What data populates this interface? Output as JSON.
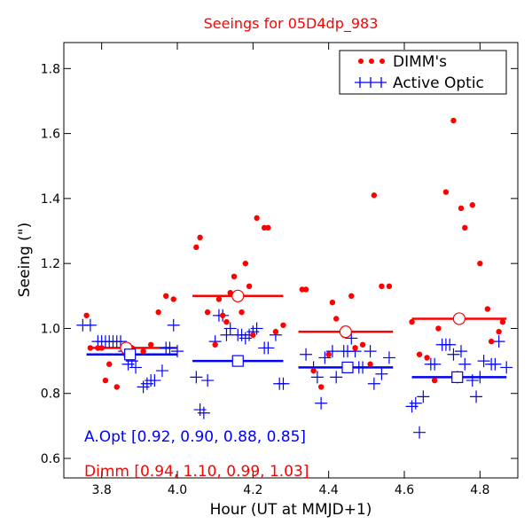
{
  "chart_data": {
    "type": "scatter",
    "title": "Seeings for 05D4dp_983",
    "xlabel": "Hour (UT at MMJD+1)",
    "ylabel": "Seeing (\")",
    "xlim": [
      3.7,
      4.9
    ],
    "ylim": [
      0.54,
      1.88
    ],
    "xticks": [
      3.8,
      4.0,
      4.2,
      4.4,
      4.6,
      4.8
    ],
    "xtick_labels": [
      "3.8",
      "4.0",
      "4.2",
      "4.4",
      "4.6",
      "4.8"
    ],
    "yticks": [
      0.6,
      0.8,
      1.0,
      1.2,
      1.4,
      1.6,
      1.8
    ],
    "ytick_labels": [
      "0.6",
      "0.8",
      "1.0",
      "1.2",
      "1.4",
      "1.6",
      "1.8"
    ],
    "legend": {
      "position": "top-right",
      "entries": [
        {
          "label": "DIMM's",
          "color": "#ff0000",
          "marker": "dot"
        },
        {
          "label": "Active Optic",
          "color": "#0000ff",
          "marker": "plus"
        }
      ]
    },
    "colors": {
      "dimm": "#ff0000",
      "aopt": "#0000ff"
    },
    "series": [
      {
        "name": "DIMM's",
        "marker": "dot",
        "points": [
          [
            3.76,
            1.04
          ],
          [
            3.77,
            0.94
          ],
          [
            3.79,
            0.94
          ],
          [
            3.8,
            0.94
          ],
          [
            3.81,
            0.84
          ],
          [
            3.82,
            0.89
          ],
          [
            3.84,
            0.82
          ],
          [
            3.86,
            0.93
          ],
          [
            3.88,
            0.94
          ],
          [
            3.91,
            0.93
          ],
          [
            3.93,
            0.95
          ],
          [
            3.95,
            1.05
          ],
          [
            3.97,
            1.1
          ],
          [
            3.99,
            1.09
          ],
          [
            4.05,
            1.25
          ],
          [
            4.06,
            1.28
          ],
          [
            4.08,
            1.05
          ],
          [
            4.1,
            0.95
          ],
          [
            4.11,
            1.09
          ],
          [
            4.12,
            1.04
          ],
          [
            4.13,
            1.02
          ],
          [
            4.14,
            1.11
          ],
          [
            4.15,
            1.16
          ],
          [
            4.17,
            1.05
          ],
          [
            4.18,
            1.2
          ],
          [
            4.19,
            1.13
          ],
          [
            4.2,
            0.98
          ],
          [
            4.21,
            1.34
          ],
          [
            4.23,
            1.31
          ],
          [
            4.24,
            1.31
          ],
          [
            4.26,
            0.99
          ],
          [
            4.28,
            1.01
          ],
          [
            4.33,
            1.12
          ],
          [
            4.34,
            1.12
          ],
          [
            4.36,
            0.87
          ],
          [
            4.38,
            0.82
          ],
          [
            4.4,
            0.92
          ],
          [
            4.41,
            1.08
          ],
          [
            4.42,
            1.03
          ],
          [
            4.44,
            0.98
          ],
          [
            4.46,
            1.1
          ],
          [
            4.47,
            0.94
          ],
          [
            4.49,
            0.95
          ],
          [
            4.51,
            0.89
          ],
          [
            4.52,
            1.41
          ],
          [
            4.54,
            1.13
          ],
          [
            4.56,
            1.13
          ],
          [
            4.62,
            1.02
          ],
          [
            4.64,
            0.92
          ],
          [
            4.66,
            0.91
          ],
          [
            4.68,
            0.84
          ],
          [
            4.69,
            1.0
          ],
          [
            4.71,
            1.42
          ],
          [
            4.73,
            1.64
          ],
          [
            4.75,
            1.37
          ],
          [
            4.76,
            1.31
          ],
          [
            4.78,
            1.38
          ],
          [
            4.8,
            1.2
          ],
          [
            4.82,
            1.06
          ],
          [
            4.83,
            0.96
          ],
          [
            4.85,
            0.99
          ],
          [
            4.86,
            1.02
          ]
        ]
      },
      {
        "name": "Active Optic",
        "marker": "plus",
        "points": [
          [
            3.75,
            1.01
          ],
          [
            3.77,
            1.01
          ],
          [
            3.79,
            0.96
          ],
          [
            3.8,
            0.96
          ],
          [
            3.81,
            0.96
          ],
          [
            3.82,
            0.96
          ],
          [
            3.83,
            0.96
          ],
          [
            3.84,
            0.96
          ],
          [
            3.85,
            0.96
          ],
          [
            3.86,
            0.93
          ],
          [
            3.87,
            0.89
          ],
          [
            3.88,
            0.9
          ],
          [
            3.89,
            0.88
          ],
          [
            3.91,
            0.82
          ],
          [
            3.92,
            0.83
          ],
          [
            3.93,
            0.84
          ],
          [
            3.94,
            0.84
          ],
          [
            3.96,
            0.87
          ],
          [
            3.97,
            0.94
          ],
          [
            3.98,
            0.94
          ],
          [
            3.99,
            1.01
          ],
          [
            4.0,
            0.93
          ],
          [
            4.05,
            0.85
          ],
          [
            4.06,
            0.75
          ],
          [
            4.07,
            0.74
          ],
          [
            4.08,
            0.84
          ],
          [
            4.1,
            0.96
          ],
          [
            4.11,
            1.04
          ],
          [
            4.12,
            1.04
          ],
          [
            4.13,
            0.98
          ],
          [
            4.14,
            1.0
          ],
          [
            4.16,
            0.98
          ],
          [
            4.17,
            0.98
          ],
          [
            4.18,
            0.97
          ],
          [
            4.19,
            0.98
          ],
          [
            4.2,
            0.99
          ],
          [
            4.21,
            1.0
          ],
          [
            4.23,
            0.94
          ],
          [
            4.24,
            0.94
          ],
          [
            4.26,
            0.98
          ],
          [
            4.27,
            0.83
          ],
          [
            4.28,
            0.83
          ],
          [
            4.34,
            0.92
          ],
          [
            4.36,
            0.88
          ],
          [
            4.37,
            0.85
          ],
          [
            4.38,
            0.77
          ],
          [
            4.39,
            0.91
          ],
          [
            4.41,
            0.93
          ],
          [
            4.42,
            0.85
          ],
          [
            4.44,
            0.93
          ],
          [
            4.45,
            0.93
          ],
          [
            4.46,
            0.97
          ],
          [
            4.47,
            0.93
          ],
          [
            4.48,
            0.88
          ],
          [
            4.49,
            0.88
          ],
          [
            4.51,
            0.93
          ],
          [
            4.52,
            0.83
          ],
          [
            4.54,
            0.86
          ],
          [
            4.56,
            0.91
          ],
          [
            4.62,
            0.76
          ],
          [
            4.63,
            0.77
          ],
          [
            4.64,
            0.68
          ],
          [
            4.65,
            0.79
          ],
          [
            4.67,
            0.89
          ],
          [
            4.68,
            0.89
          ],
          [
            4.7,
            0.95
          ],
          [
            4.71,
            0.95
          ],
          [
            4.72,
            0.95
          ],
          [
            4.73,
            0.92
          ],
          [
            4.74,
            0.85
          ],
          [
            4.75,
            0.93
          ],
          [
            4.76,
            0.89
          ],
          [
            4.78,
            0.84
          ],
          [
            4.79,
            0.79
          ],
          [
            4.8,
            0.85
          ],
          [
            4.81,
            0.9
          ],
          [
            4.83,
            0.89
          ],
          [
            4.84,
            0.89
          ],
          [
            4.85,
            0.96
          ],
          [
            4.87,
            0.88
          ]
        ]
      }
    ],
    "block_means": {
      "dimm": [
        {
          "x0": 3.77,
          "x1": 4.0,
          "mid": 3.865,
          "value": 0.94
        },
        {
          "x0": 4.04,
          "x1": 4.28,
          "mid": 4.16,
          "value": 1.1
        },
        {
          "x0": 4.32,
          "x1": 4.57,
          "mid": 4.445,
          "value": 0.99
        },
        {
          "x0": 4.62,
          "x1": 4.87,
          "mid": 4.745,
          "value": 1.03
        }
      ],
      "aopt": [
        {
          "x0": 3.76,
          "x1": 4.0,
          "mid": 3.875,
          "value": 0.92
        },
        {
          "x0": 4.04,
          "x1": 4.28,
          "mid": 4.16,
          "value": 0.9
        },
        {
          "x0": 4.32,
          "x1": 4.57,
          "mid": 4.45,
          "value": 0.88
        },
        {
          "x0": 4.62,
          "x1": 4.87,
          "mid": 4.74,
          "value": 0.85
        }
      ]
    },
    "annotations": {
      "aopt_text": "A.Opt [0.92, 0.90, 0.88, 0.85]",
      "dimm_text": "Dimm [0.94, 1.10, 0.99, 1.03]"
    }
  }
}
